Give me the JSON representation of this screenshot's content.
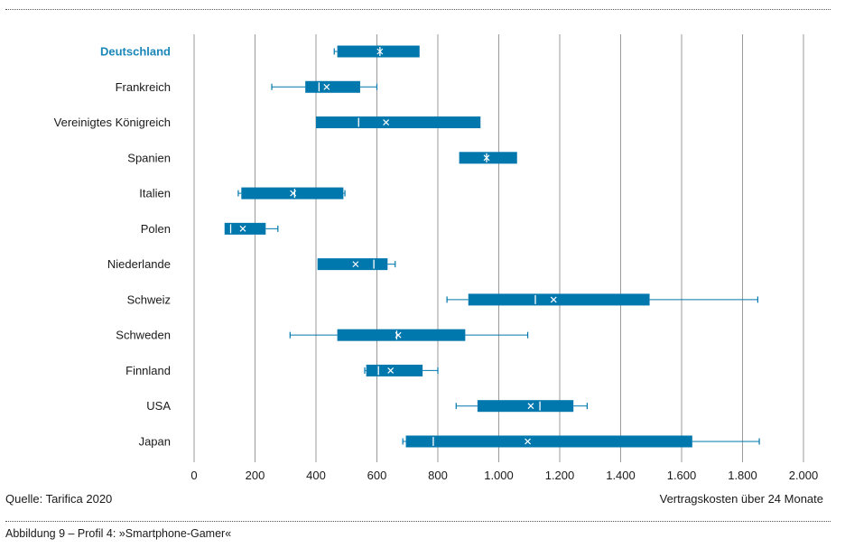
{
  "footer": {
    "source": "Quelle: Tarifica 2020",
    "caption": "Abbildung 9 – Profil 4: »Smartphone-Gamer«"
  },
  "colors": {
    "box": "#0077ad",
    "highlight_label": "#1a87b8",
    "grid": "#9a9a9a",
    "text": "#1a1a1a"
  },
  "chart_data": {
    "type": "boxplot",
    "title": "",
    "xlabel": "Vertragskosten über 24 Monate",
    "ylabel": "",
    "xlim": [
      0,
      2000
    ],
    "xticks": [
      0,
      200,
      400,
      600,
      800,
      1000,
      1200,
      1400,
      1600,
      1800,
      2000
    ],
    "xtick_labels": [
      "0",
      "200",
      "400",
      "600",
      "800",
      "1.000",
      "1.200",
      "1.400",
      "1.600",
      "1.800",
      "2.000"
    ],
    "grid": true,
    "highlight": "Deutschland",
    "categories": [
      {
        "name": "Deutschland",
        "min": 460,
        "q1": 470,
        "median": 610,
        "mean": 610,
        "q3": 740,
        "max": 740
      },
      {
        "name": "Frankreich",
        "min": 255,
        "q1": 365,
        "median": 410,
        "mean": 435,
        "q3": 545,
        "max": 600
      },
      {
        "name": "Vereinigtes Königreich",
        "min": 400,
        "q1": 400,
        "median": 540,
        "mean": 630,
        "q3": 940,
        "max": 940
      },
      {
        "name": "Spanien",
        "min": 870,
        "q1": 870,
        "median": 960,
        "mean": 960,
        "q3": 1060,
        "max": 1060
      },
      {
        "name": "Italien",
        "min": 145,
        "q1": 155,
        "median": 330,
        "mean": 325,
        "q3": 490,
        "max": 495
      },
      {
        "name": "Polen",
        "min": 100,
        "q1": 100,
        "median": 120,
        "mean": 160,
        "q3": 235,
        "max": 275
      },
      {
        "name": "Niederlande",
        "min": 405,
        "q1": 405,
        "median": 590,
        "mean": 530,
        "q3": 635,
        "max": 660
      },
      {
        "name": "Schweiz",
        "min": 830,
        "q1": 900,
        "median": 1120,
        "mean": 1180,
        "q3": 1495,
        "max": 1850
      },
      {
        "name": "Schweden",
        "min": 315,
        "q1": 470,
        "median": 665,
        "mean": 670,
        "q3": 890,
        "max": 1095
      },
      {
        "name": "Finnland",
        "min": 560,
        "q1": 565,
        "median": 605,
        "mean": 645,
        "q3": 750,
        "max": 800
      },
      {
        "name": "USA",
        "min": 860,
        "q1": 930,
        "median": 1135,
        "mean": 1105,
        "q3": 1245,
        "max": 1290
      },
      {
        "name": "Japan",
        "min": 685,
        "q1": 695,
        "median": 785,
        "mean": 1095,
        "q3": 1635,
        "max": 1855
      }
    ]
  }
}
